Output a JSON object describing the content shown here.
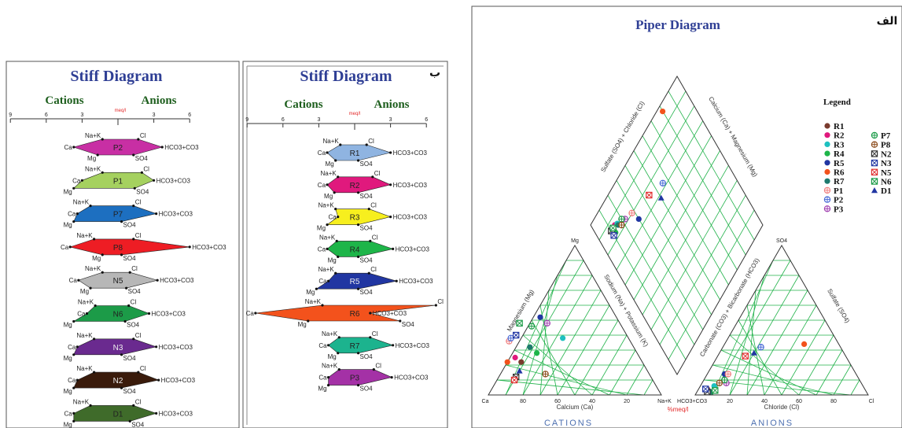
{
  "chart_data": [
    {
      "type": "stiff",
      "panel_label": "",
      "title": "Stiff Diagram",
      "left_header": "Cations",
      "right_header": "Anions",
      "unit": "meq/l",
      "ticks": [
        "9",
        "6",
        "3",
        "3",
        "6"
      ],
      "ion_labels": {
        "top_left": "Na+K",
        "mid_left": "Ca",
        "bot_left": "Mg",
        "top_right": "Cl",
        "mid_right": "HCO3+CO3",
        "bot_right": "SO4"
      },
      "samples": [
        {
          "name": "P2",
          "color": "#c82fa4",
          "values": {
            "NaK": 1.3,
            "Ca": 3.7,
            "Mg": 1.7,
            "Cl": 1.7,
            "HCO3": 3.7,
            "SO4": 1.3
          }
        },
        {
          "name": "P1",
          "color": "#a5d15f",
          "values": {
            "NaK": 1.3,
            "Ca": 3.0,
            "Mg": 3.7,
            "Cl": 2.0,
            "HCO3": 3.0,
            "SO4": 1.4
          }
        },
        {
          "name": "P7",
          "color": "#1d6fc0",
          "values": {
            "NaK": 2.3,
            "Ca": 3.4,
            "Mg": 3.7,
            "Cl": 1.3,
            "HCO3": 3.2,
            "SO4": 0.3
          }
        },
        {
          "name": "P8",
          "color": "#ee1d24",
          "values": {
            "NaK": 2.0,
            "Ca": 4.0,
            "Mg": 1.3,
            "Cl": 1.3,
            "HCO3": 6.0,
            "SO4": 0.3
          }
        },
        {
          "name": "N5",
          "color": "#b7b7b7",
          "values": {
            "NaK": 1.3,
            "Ca": 3.3,
            "Mg": 2.3,
            "Cl": 1.0,
            "HCO3": 3.3,
            "SO4": 0.7
          }
        },
        {
          "name": "N6",
          "color": "#1c9b48",
          "values": {
            "NaK": 1.9,
            "Ca": 2.6,
            "Mg": 3.7,
            "Cl": 0.9,
            "HCO3": 2.6,
            "SO4": 0.6
          }
        },
        {
          "name": "N3",
          "color": "#6a2a8f",
          "values": {
            "NaK": 2.0,
            "Ca": 3.4,
            "Mg": 3.7,
            "Cl": 1.3,
            "HCO3": 3.2,
            "SO4": 0.3
          }
        },
        {
          "name": "N2",
          "color": "#3a1b0b",
          "values": {
            "NaK": 2.0,
            "Ca": 3.4,
            "Mg": 3.7,
            "Cl": 1.7,
            "HCO3": 3.4,
            "SO4": 0.3
          }
        },
        {
          "name": "D1",
          "color": "#3f6b2a",
          "values": {
            "NaK": 2.3,
            "Ca": 3.7,
            "Mg": 3.7,
            "Cl": 1.3,
            "HCO3": 3.2,
            "SO4": 1.0
          }
        }
      ]
    },
    {
      "type": "stiff",
      "panel_label": "ب",
      "title": "Stiff Diagram",
      "left_header": "Cations",
      "right_header": "Anions",
      "unit": "meq/l",
      "ticks": [
        "9",
        "6",
        "3",
        "3",
        "6"
      ],
      "ion_labels": {
        "top_left": "Na+K",
        "mid_left": "Ca",
        "bot_left": "Mg",
        "top_right": "Cl",
        "mid_right": "HCO3+CO3",
        "bot_right": "SO4"
      },
      "samples": [
        {
          "name": "R1",
          "color": "#8fb4e1",
          "values": {
            "NaK": 1.2,
            "Ca": 2.3,
            "Mg": 1.6,
            "Cl": 1.0,
            "HCO3": 3.0,
            "SO4": 0.3
          }
        },
        {
          "name": "R2",
          "color": "#e0197d",
          "values": {
            "NaK": 1.4,
            "Ca": 2.3,
            "Mg": 1.7,
            "Cl": 1.5,
            "HCO3": 3.0,
            "SO4": 0.3
          }
        },
        {
          "name": "R3",
          "color": "#f7ef1e",
          "values": {
            "NaK": 1.6,
            "Ca": 1.4,
            "Mg": 2.3,
            "Cl": 1.2,
            "HCO3": 3.0,
            "SO4": 0.3
          }
        },
        {
          "name": "R4",
          "color": "#1eb549",
          "values": {
            "NaK": 1.5,
            "Ca": 2.3,
            "Mg": 1.4,
            "Cl": 1.3,
            "HCO3": 3.2,
            "SO4": 0.3
          }
        },
        {
          "name": "R5",
          "color": "#2136a2",
          "values": {
            "NaK": 1.6,
            "Ca": 2.2,
            "Mg": 3.2,
            "Cl": 1.2,
            "HCO3": 3.5,
            "SO4": 0.3
          }
        },
        {
          "name": "R6",
          "color": "#f3521c",
          "values": {
            "NaK": 2.7,
            "Ca": 8.3,
            "Mg": 3.9,
            "Cl": 6.8,
            "HCO3": 1.3,
            "SO4": 3.8
          }
        },
        {
          "name": "R7",
          "color": "#1cb38e",
          "values": {
            "NaK": 1.3,
            "Ca": 2.2,
            "Mg": 1.4,
            "Cl": 1.3,
            "HCO3": 3.2,
            "SO4": 0.3
          }
        },
        {
          "name": "P3",
          "color": "#a431a6",
          "values": {
            "NaK": 1.3,
            "Ca": 2.2,
            "Mg": 2.2,
            "Cl": 1.6,
            "HCO3": 3.1,
            "SO4": 0.3
          }
        }
      ]
    },
    {
      "type": "piper",
      "panel_label": "الف",
      "title": "Piper Diagram",
      "unit": "%meq/l",
      "cations_caption": "CATIONS",
      "anions_caption": "ANIONS",
      "axis_labels": {
        "cation_bottom": "Calcium (Ca)",
        "cation_left": "Magnesium (Mg)",
        "cation_right": "Sodium (Na) + Potassium (K)",
        "anion_bottom": "Chloride (Cl)",
        "anion_right": "Sulfate (SO4)",
        "anion_left": "Carbonate (CO3) + Bicarbonate (HCO3)",
        "diamond_upper_left": "Sulfate (SO4) + Chloride (Cl)",
        "diamond_upper_right": "Calcium (Ca) + Magnesium (Mg)"
      },
      "corner_labels": {
        "cation_top": "Mg",
        "cation_left": "Ca",
        "cation_right": "Na+K",
        "anion_top": "SO4",
        "anion_left": "HCO3+CO3",
        "anion_right": "Cl"
      },
      "legend_title": "Legend",
      "legend": [
        {
          "name": "R1",
          "marker": "circle",
          "color": "#7a3b2e"
        },
        {
          "name": "R2",
          "marker": "circle",
          "color": "#e0197d"
        },
        {
          "name": "R3",
          "marker": "circle",
          "color": "#1ec0c0"
        },
        {
          "name": "R4",
          "marker": "circle",
          "color": "#1eb549"
        },
        {
          "name": "R5",
          "marker": "circle",
          "color": "#2136a2"
        },
        {
          "name": "R6",
          "marker": "circle",
          "color": "#f3521c"
        },
        {
          "name": "R7",
          "marker": "circle",
          "color": "#1e7a6e"
        },
        {
          "name": "P1",
          "marker": "circle-plus",
          "color": "#f08080"
        },
        {
          "name": "P2",
          "marker": "circle-plus",
          "color": "#4a6bd6"
        },
        {
          "name": "P3",
          "marker": "circle-plus",
          "color": "#a040b0"
        },
        {
          "name": "P7",
          "marker": "circle-plus",
          "color": "#1c9b48"
        },
        {
          "name": "P8",
          "marker": "circle-plus",
          "color": "#8a4a1a"
        },
        {
          "name": "N2",
          "marker": "square-x",
          "color": "#333333"
        },
        {
          "name": "N3",
          "marker": "square-x",
          "color": "#2136a2"
        },
        {
          "name": "N5",
          "marker": "square-x",
          "color": "#e03030"
        },
        {
          "name": "N6",
          "marker": "square-x",
          "color": "#1c9b48"
        },
        {
          "name": "D1",
          "marker": "triangle",
          "color": "#2136a2"
        }
      ],
      "points": {
        "cation_triangle_pct_Ca_Mg": [
          {
            "s": "R1",
            "Ca": 70,
            "Mg": 22
          },
          {
            "s": "R2",
            "Ca": 72,
            "Mg": 25
          },
          {
            "s": "R3",
            "Ca": 38,
            "Mg": 38
          },
          {
            "s": "R4",
            "Ca": 58,
            "Mg": 28
          },
          {
            "s": "R5",
            "Ca": 44,
            "Mg": 52
          },
          {
            "s": "R6",
            "Ca": 78,
            "Mg": 22
          },
          {
            "s": "R7",
            "Ca": 60,
            "Mg": 32
          },
          {
            "s": "P1",
            "Ca": 70,
            "Mg": 36
          },
          {
            "s": "P2",
            "Ca": 68,
            "Mg": 38
          },
          {
            "s": "P3",
            "Ca": 42,
            "Mg": 48
          },
          {
            "s": "P7",
            "Ca": 52,
            "Mg": 46
          },
          {
            "s": "P8",
            "Ca": 60,
            "Mg": 14
          },
          {
            "s": "N2",
            "Ca": 78,
            "Mg": 12
          },
          {
            "s": "N3",
            "Ca": 64,
            "Mg": 40
          },
          {
            "s": "N5",
            "Ca": 80,
            "Mg": 10
          },
          {
            "s": "N6",
            "Ca": 58,
            "Mg": 48
          },
          {
            "s": "D1",
            "Ca": 74,
            "Mg": 16
          }
        ],
        "anion_triangle_pct_Cl_SO4": [
          {
            "s": "R1",
            "Cl": 5,
            "SO4": 4
          },
          {
            "s": "R2",
            "Cl": 10,
            "SO4": 3
          },
          {
            "s": "R3",
            "Cl": 8,
            "SO4": 6
          },
          {
            "s": "R4",
            "Cl": 8,
            "SO4": 2
          },
          {
            "s": "R5",
            "Cl": 10,
            "SO4": 14
          },
          {
            "s": "R6",
            "Cl": 46,
            "SO4": 34
          },
          {
            "s": "R7",
            "Cl": 8,
            "SO4": 2
          },
          {
            "s": "P1",
            "Cl": 12,
            "SO4": 14
          },
          {
            "s": "P2",
            "Cl": 22,
            "SO4": 32
          },
          {
            "s": "P3",
            "Cl": 14,
            "SO4": 8
          },
          {
            "s": "P7",
            "Cl": 12,
            "SO4": 10
          },
          {
            "s": "P8",
            "Cl": 10,
            "SO4": 8
          },
          {
            "s": "N2",
            "Cl": 6,
            "SO4": 2
          },
          {
            "s": "N3",
            "Cl": 4,
            "SO4": 4
          },
          {
            "s": "N5",
            "Cl": 16,
            "SO4": 26
          },
          {
            "s": "N6",
            "Cl": 10,
            "SO4": 3
          },
          {
            "s": "D1",
            "Cl": 20,
            "SO4": 28
          }
        ],
        "diamond_pct_SO4Cl_CaMg": [
          {
            "s": "R1",
            "x": 12,
            "y": 85
          },
          {
            "s": "R2",
            "x": 14,
            "y": 86
          },
          {
            "s": "R3",
            "x": 16,
            "y": 85
          },
          {
            "s": "R4",
            "x": 12,
            "y": 83
          },
          {
            "s": "R5",
            "x": 30,
            "y": 74
          },
          {
            "s": "R6",
            "x": 80,
            "y": 96
          },
          {
            "s": "R7",
            "x": 16,
            "y": 84
          },
          {
            "s": "P1",
            "x": 28,
            "y": 80
          },
          {
            "s": "P2",
            "x": 56,
            "y": 72
          },
          {
            "s": "P3",
            "x": 22,
            "y": 82
          },
          {
            "s": "P7",
            "x": 20,
            "y": 84
          },
          {
            "s": "P8",
            "x": 18,
            "y": 82
          },
          {
            "s": "N2",
            "x": 10,
            "y": 86
          },
          {
            "s": "N3",
            "x": 10,
            "y": 83
          },
          {
            "s": "N5",
            "x": 44,
            "y": 76
          },
          {
            "s": "N6",
            "x": 12,
            "y": 86
          },
          {
            "s": "D1",
            "x": 50,
            "y": 68
          }
        ]
      }
    }
  ]
}
